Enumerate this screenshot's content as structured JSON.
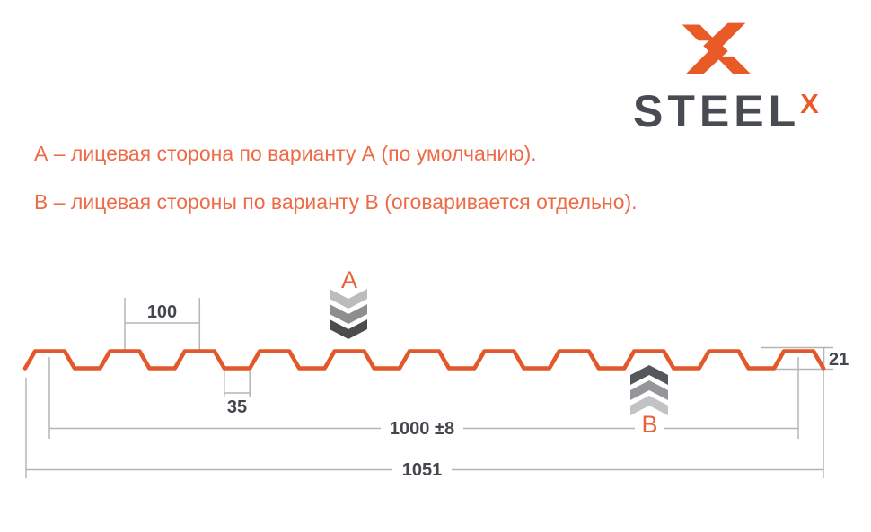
{
  "logo": {
    "brand": "STEEL",
    "sup": "X"
  },
  "notes": {
    "line_a": "А – лицевая сторона по варианту А (по умолчанию).",
    "line_b": "В – лицевая стороны по варианту В (оговаривается отдельно)."
  },
  "diagram": {
    "marker_a": "А",
    "marker_b": "В",
    "dims": {
      "pitch": "100",
      "valley_width": "35",
      "profile_height": "21",
      "working_width": "1000 ±8",
      "overall_width": "1051"
    }
  },
  "colors": {
    "brand_orange": "#e85a26",
    "note_orange": "#ed6b46",
    "profile_orange": "#e2582a",
    "dim_text_dark": "#43474d",
    "dim_line_gray": "#b5b5b5",
    "chevron_light": "#bcbcbc",
    "chevron_mid": "#8e8e8e",
    "chevron_dark": "#4c4c4c"
  }
}
